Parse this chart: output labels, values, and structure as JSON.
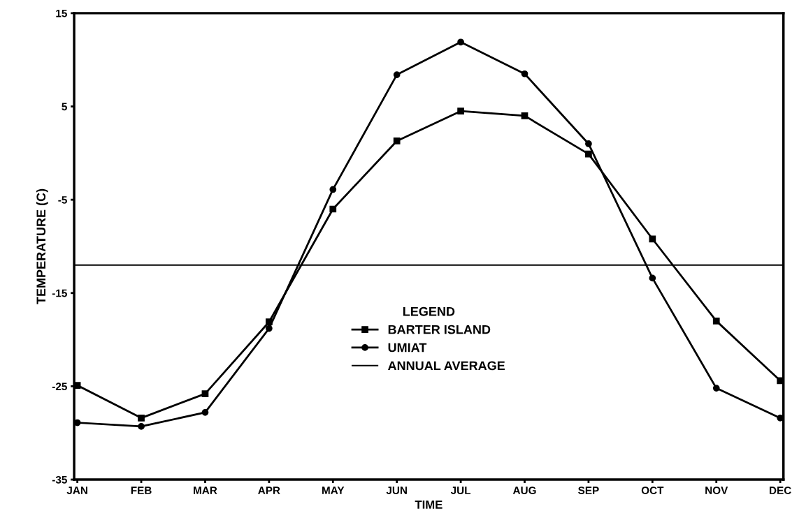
{
  "chart_data": {
    "type": "line",
    "xlabel": "TIME",
    "ylabel": "TEMPERATURE (C)",
    "legend_title": "LEGEND",
    "categories": [
      "JAN",
      "FEB",
      "MAR",
      "APR",
      "MAY",
      "JUN",
      "JUL",
      "AUG",
      "SEP",
      "OCT",
      "NOV",
      "DEC"
    ],
    "series": [
      {
        "name": "BARTER ISLAND",
        "color": "#000000",
        "marker": "square",
        "values": [
          -24.9,
          -28.4,
          -25.8,
          -18.1,
          -6.0,
          1.3,
          4.5,
          4.0,
          -0.1,
          -9.2,
          -18.0,
          -24.4
        ]
      },
      {
        "name": "UMIAT",
        "color": "#000000",
        "marker": "circle",
        "values": [
          -28.9,
          -29.3,
          -27.8,
          -18.8,
          -3.9,
          8.4,
          11.9,
          8.5,
          1.0,
          -13.4,
          -25.2,
          -28.4
        ]
      }
    ],
    "ref_lines": [
      {
        "axis": "y",
        "value": -12,
        "label": "ANNUAL AVERAGE",
        "color": "#000000",
        "line_style": "solid"
      }
    ],
    "ylim": [
      -35,
      15
    ],
    "yticks": [
      15,
      5,
      -5,
      -15,
      -25,
      -35
    ],
    "grid": false,
    "legend": "center",
    "line_style": "solid"
  }
}
